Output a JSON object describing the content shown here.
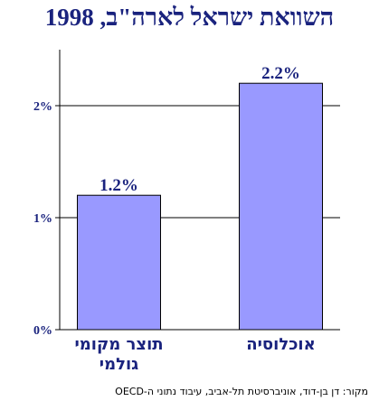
{
  "title": "השוואת ישראל לארה\"ב, 1998",
  "source": "מקור: דן בן-דוד, אוניברסיטת תל-אביב, עיבוד נתוני ה-OECD",
  "colors": {
    "bar": "#9999ff",
    "text": "#1a237e",
    "axis": "#000000"
  },
  "chart_data": {
    "type": "bar",
    "categories": [
      "תוצר מקומי גולמי",
      "אוכלוסיה"
    ],
    "values": [
      1.2,
      2.2
    ],
    "data_labels": [
      "1.2%",
      "2.2%"
    ],
    "y_ticks": [
      0,
      1,
      2
    ],
    "y_tick_labels": [
      "0%",
      "1%",
      "2%"
    ],
    "ylim": [
      0,
      2.5
    ],
    "grid": true,
    "legend": "none"
  }
}
